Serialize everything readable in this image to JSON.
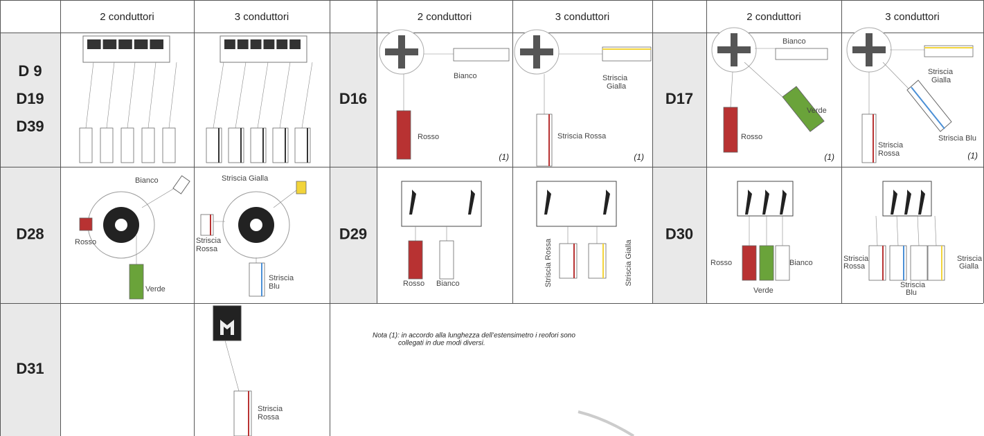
{
  "table": {
    "header": [
      "2 conduttori",
      "3 conduttori",
      "2 conduttori",
      "3 conduttori",
      "2 conduttori",
      "3 conduttori"
    ],
    "rows": [
      {
        "codes": [
          [
            "D 9",
            "D19",
            "D39"
          ],
          [
            "D16"
          ],
          [
            "D17"
          ]
        ],
        "cells": [
          [],
          [],
          [
            "Bianco",
            "Rosso",
            "(1)"
          ],
          [
            "Striscia",
            "Gialla",
            "Striscia Rossa",
            "(1)"
          ],
          [
            "Bianco",
            "Verde",
            "Rosso",
            "(1)"
          ],
          [
            "Striscia",
            "Gialla",
            "Striscia",
            "Rossa",
            "Striscia Blu",
            "(1)"
          ]
        ]
      },
      {
        "codes": [
          [
            "D28"
          ],
          [
            "D29"
          ],
          [
            "D30"
          ]
        ],
        "cells": [
          [
            "Bianco",
            "Rosso",
            "Verde"
          ],
          [
            "Striscia Gialla",
            "Striscia",
            "Rossa",
            "Striscia",
            "Blu"
          ],
          [
            "Rosso",
            "Bianco"
          ],
          [
            "Striscia Rossa",
            "Striscia Gialla"
          ],
          [
            "Rosso",
            "Bianco",
            "Verde"
          ],
          [
            "Striscia",
            "Rossa",
            "Striscia",
            "Blu",
            "Striscia",
            "Gialla"
          ]
        ]
      },
      {
        "codes": [
          [
            "D31"
          ]
        ],
        "cells": [
          [],
          [
            "Striscia",
            "Rossa"
          ]
        ]
      }
    ],
    "note": [
      "Nota (1): in accordo alla lunghezza dell’estensimetro i reofori sono",
      "collegati in due modi diversi."
    ]
  }
}
